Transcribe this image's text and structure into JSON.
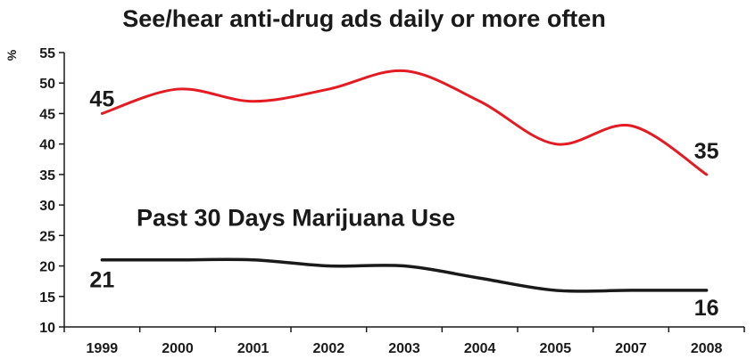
{
  "chart_data": {
    "type": "line",
    "title": "See/hear anti-drug ads daily or more often",
    "ylabel": "%",
    "xlabel": "",
    "ylim": [
      10,
      55
    ],
    "yticks": [
      10,
      15,
      20,
      25,
      30,
      35,
      40,
      45,
      50,
      55
    ],
    "grid": false,
    "categories": [
      "1999",
      "2000",
      "2001",
      "2002",
      "2003",
      "2004",
      "2005",
      "2007",
      "2008"
    ],
    "series": [
      {
        "values": [
          45,
          49,
          47,
          49,
          52,
          47,
          40,
          43,
          35
        ],
        "color": "#e31b23",
        "label_start": "45",
        "label_end": "35"
      },
      {
        "name": "Past 30 Days Marijuana Use",
        "values": [
          21,
          21,
          21,
          20,
          20,
          18,
          16,
          16,
          16
        ],
        "color": "#1a1a1a",
        "label_start": "21",
        "label_end": "16"
      }
    ]
  }
}
